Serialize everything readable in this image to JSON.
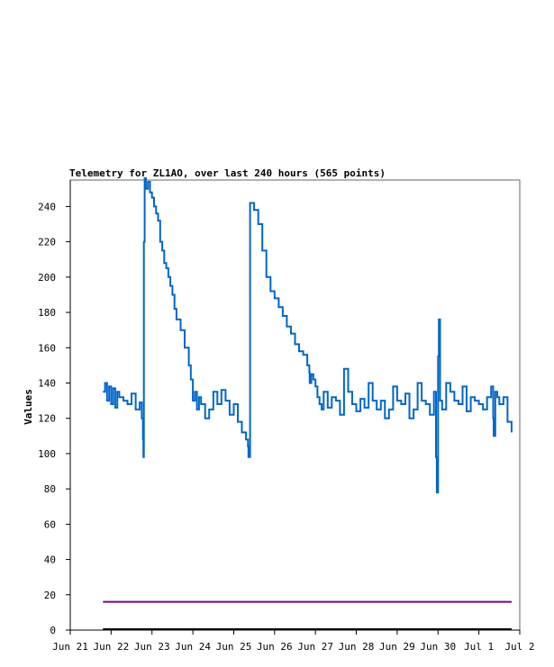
{
  "chart_data": {
    "type": "line",
    "title": "Telemetry for ZL1AO, over last 240 hours (565 points)",
    "xlabel": "",
    "ylabel": "Values",
    "xlim": [
      "Jun 21",
      "Jul 2"
    ],
    "ylim": [
      0,
      255
    ],
    "x_ticks": [
      "Jun 21",
      "Jun 22",
      "Jun 23",
      "Jun 24",
      "Jun 25",
      "Jun 26",
      "Jun 27",
      "Jun 28",
      "Jun 29",
      "Jun 30",
      "Jul 1",
      "Jul 2"
    ],
    "y_ticks": [
      0,
      20,
      40,
      60,
      80,
      100,
      120,
      140,
      160,
      180,
      200,
      220,
      240
    ],
    "grid": false,
    "legend": "none",
    "colors": {
      "series_1": "#0066cc",
      "series_2": "#800080",
      "series_3": "#000000",
      "axes": "#000000"
    },
    "series": [
      {
        "values_x_days_after_jun21": [
          0.8,
          0.85,
          0.9,
          0.95,
          1.0,
          1.05,
          1.1,
          1.15,
          1.2,
          1.3,
          1.4,
          1.5,
          1.6,
          1.7,
          1.75,
          1.78,
          1.79,
          1.8,
          1.82,
          1.85,
          1.9,
          1.95,
          2.0,
          2.05,
          2.1,
          2.15,
          2.2,
          2.25,
          2.3,
          2.35,
          2.4,
          2.45,
          2.5,
          2.55,
          2.6,
          2.7,
          2.8,
          2.9,
          2.95,
          3.0,
          3.05,
          3.1,
          3.15,
          3.2,
          3.3,
          3.4,
          3.5,
          3.6,
          3.7,
          3.8,
          3.9,
          4.0,
          4.1,
          4.2,
          4.3,
          4.35,
          4.36,
          4.4,
          4.5,
          4.6,
          4.7,
          4.8,
          4.9,
          5.0,
          5.1,
          5.2,
          5.3,
          5.4,
          5.5,
          5.6,
          5.7,
          5.8,
          5.85,
          5.86,
          5.9,
          5.95,
          6.0,
          6.05,
          6.1,
          6.15,
          6.2,
          6.3,
          6.4,
          6.5,
          6.6,
          6.7,
          6.8,
          6.9,
          7.0,
          7.1,
          7.2,
          7.3,
          7.4,
          7.5,
          7.6,
          7.7,
          7.8,
          7.9,
          8.0,
          8.1,
          8.2,
          8.3,
          8.4,
          8.5,
          8.6,
          8.7,
          8.8,
          8.9,
          8.95,
          8.97,
          9.0,
          9.02,
          9.05,
          9.1,
          9.2,
          9.3,
          9.4,
          9.5,
          9.6,
          9.7,
          9.8,
          9.9,
          10.0,
          10.1,
          10.2,
          10.3,
          10.35,
          10.36,
          10.4,
          10.45,
          10.5,
          10.6,
          10.7,
          10.8
        ],
        "values": [
          135,
          140,
          130,
          138,
          128,
          137,
          126,
          135,
          132,
          130,
          128,
          134,
          125,
          129,
          120,
          108,
          98,
          220,
          256,
          250,
          254,
          248,
          245,
          240,
          236,
          232,
          220,
          215,
          208,
          205,
          200,
          195,
          190,
          182,
          176,
          170,
          160,
          150,
          142,
          130,
          135,
          125,
          132,
          128,
          120,
          125,
          135,
          128,
          136,
          130,
          122,
          128,
          118,
          112,
          108,
          104,
          98,
          242,
          238,
          230,
          215,
          200,
          192,
          188,
          183,
          178,
          172,
          168,
          162,
          158,
          156,
          150,
          146,
          140,
          145,
          142,
          138,
          132,
          128,
          125,
          135,
          126,
          132,
          130,
          122,
          148,
          135,
          128,
          124,
          131,
          126,
          140,
          130,
          125,
          130,
          120,
          125,
          138,
          130,
          128,
          134,
          120,
          125,
          140,
          130,
          128,
          122,
          135,
          98,
          78,
          155,
          176,
          130,
          125,
          140,
          135,
          130,
          128,
          138,
          124,
          132,
          130,
          128,
          125,
          132,
          138,
          120,
          110,
          135,
          132,
          128,
          132,
          118,
          112
        ]
      },
      {
        "values": [
          16,
          16
        ]
      },
      {
        "values": [
          0,
          0
        ]
      }
    ]
  }
}
